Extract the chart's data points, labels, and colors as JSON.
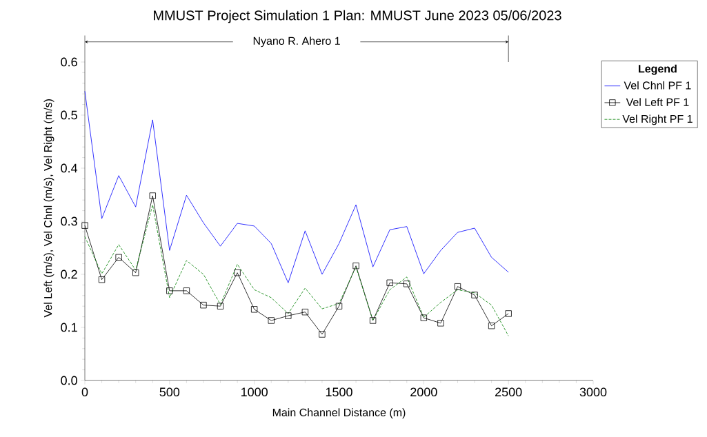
{
  "chart_data": {
    "type": "line",
    "title": "MMUST Project Simulation 1      Plan: MMUST June 2023      05/06/2023",
    "xlabel": "Main Channel Distance (m)",
    "ylabel": "Vel Left (m/s),  Vel Chnl (m/s),  Vel Right (m/s)",
    "annotations": [
      "Nyano R. Ahero 1"
    ],
    "legend_title": "Legend",
    "legend": "right",
    "x": [
      0,
      100,
      200,
      300,
      400,
      500,
      600,
      700,
      800,
      900,
      1000,
      1100,
      1200,
      1300,
      1400,
      1500,
      1600,
      1700,
      1800,
      1900,
      2000,
      2100,
      2200,
      2300,
      2400,
      2500
    ],
    "series": [
      {
        "name": "Vel Chnl PF 1",
        "color": "#0000ff",
        "marker": "none",
        "line_style": "solid",
        "values": [
          0.545,
          0.305,
          0.386,
          0.327,
          0.491,
          0.245,
          0.349,
          0.297,
          0.253,
          0.296,
          0.291,
          0.258,
          0.184,
          0.282,
          0.2,
          0.258,
          0.331,
          0.214,
          0.284,
          0.29,
          0.201,
          0.245,
          0.279,
          0.287,
          0.232,
          0.204
        ]
      },
      {
        "name": "Vel Left PF 1",
        "color": "#000000",
        "marker": "square",
        "line_style": "solid",
        "values": [
          0.292,
          0.19,
          0.232,
          0.203,
          0.348,
          0.169,
          0.169,
          0.142,
          0.14,
          0.203,
          0.134,
          0.113,
          0.122,
          0.129,
          0.087,
          0.14,
          0.216,
          0.113,
          0.184,
          0.182,
          0.118,
          0.108,
          0.177,
          0.161,
          0.103,
          0.126
        ]
      },
      {
        "name": "Vel Right PF 1",
        "color": "#008000",
        "marker": "none",
        "line_style": "dashed",
        "values": [
          0.271,
          0.201,
          0.256,
          0.208,
          0.331,
          0.156,
          0.226,
          0.2,
          0.143,
          0.219,
          0.171,
          0.156,
          0.126,
          0.174,
          0.135,
          0.145,
          0.214,
          0.113,
          0.171,
          0.195,
          0.119,
          0.147,
          0.171,
          0.165,
          0.142,
          0.084
        ]
      }
    ],
    "xlim": [
      0,
      3000
    ],
    "xticks": [
      0,
      500,
      1000,
      1500,
      2000,
      2500,
      3000
    ],
    "ylim": [
      0,
      0.65
    ],
    "yticks": [
      {
        "value": 0,
        "label": "0.0"
      },
      {
        "value": 0.1,
        "label": "0.1"
      },
      {
        "value": 0.2,
        "label": "0.2"
      },
      {
        "value": 0.3,
        "label": "0.3"
      },
      {
        "value": 0.4,
        "label": "0.4"
      },
      {
        "value": 0.5,
        "label": "0.5"
      },
      {
        "value": 0.6,
        "label": "0.6"
      }
    ],
    "grid": false
  }
}
